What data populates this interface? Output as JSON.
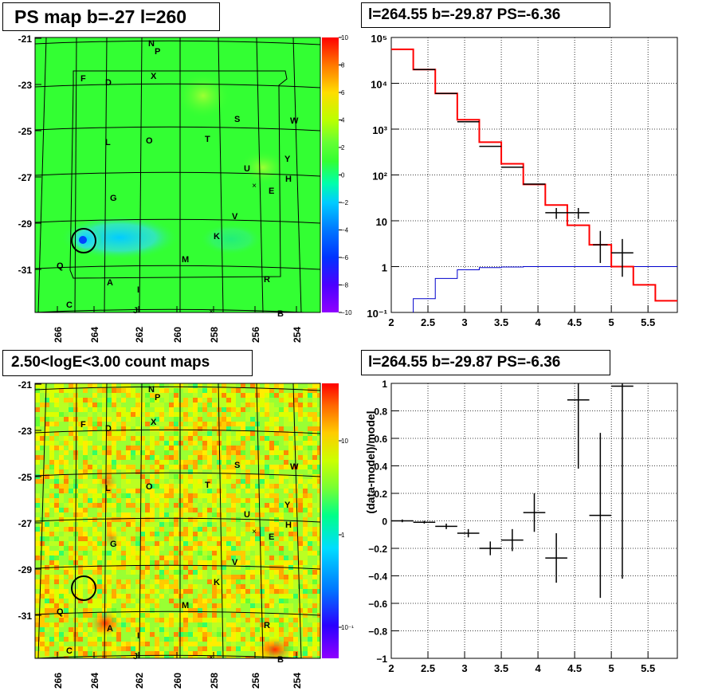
{
  "panels": {
    "map": {
      "title": "PS map b=-27 l=260"
    },
    "spectrum": {
      "title": "l=264.55 b=-29.87 PS=-6.36"
    },
    "counts": {
      "title": "2.50<logE<3.00 count maps"
    },
    "residual": {
      "title": "l=264.55 b=-29.87 PS=-6.36"
    }
  },
  "chart_data": [
    {
      "type": "heatmap",
      "id": "ps-map",
      "title": "PS map b=-27 l=260",
      "x_ticks": [
        "266",
        "264",
        "262",
        "260",
        "258",
        "256",
        "254"
      ],
      "y_ticks": [
        "-21",
        "-23",
        "-25",
        "-27",
        "-29",
        "-31"
      ],
      "colorbar": {
        "min": -10,
        "max": 10,
        "ticks": [
          "10",
          "8",
          "6",
          "4",
          "2",
          "0",
          "−2",
          "−4",
          "−6",
          "−8",
          "−10"
        ]
      },
      "source_labels": [
        "N",
        "P",
        "F",
        "D",
        "X",
        "S",
        "W",
        "L",
        "O",
        "T",
        "Y",
        "U",
        "H",
        "E",
        "G",
        "V",
        "K",
        "M",
        "Q",
        "R",
        "A",
        "I",
        "C",
        "J",
        "B"
      ],
      "highlight": {
        "l": 264.55,
        "b": -29.87,
        "ps": -6.36
      },
      "colors": {
        "background": "#33ff33",
        "deficit": "#33ddff",
        "excess": "#99ff33"
      }
    },
    {
      "type": "line",
      "id": "spectrum",
      "title": "l=264.55 b=-29.87 PS=-6.36",
      "xlim": [
        2,
        5.9
      ],
      "ylim": [
        0.1,
        100000
      ],
      "log_y": true,
      "grid": true,
      "x_ticks": [
        "2",
        "2.5",
        "3",
        "3.5",
        "4",
        "4.5",
        "5",
        "5.5"
      ],
      "y_ticks": [
        "10⁻¹",
        "1",
        "10",
        "10²",
        "10³",
        "10⁴",
        "10⁵"
      ],
      "model_bins": [
        [
          2.0,
          2.3,
          55000
        ],
        [
          2.3,
          2.6,
          20000
        ],
        [
          2.6,
          2.9,
          6000
        ],
        [
          2.9,
          3.2,
          1600
        ],
        [
          3.2,
          3.5,
          520
        ],
        [
          3.5,
          3.8,
          175
        ],
        [
          3.8,
          4.1,
          62
        ],
        [
          4.1,
          4.4,
          22
        ],
        [
          4.4,
          4.7,
          8
        ],
        [
          4.7,
          5.0,
          3
        ],
        [
          5.0,
          5.3,
          1
        ],
        [
          5.3,
          5.6,
          0.4
        ],
        [
          5.6,
          5.9,
          0.18
        ]
      ],
      "background_bins": [
        [
          2.3,
          2.6,
          0.2
        ],
        [
          2.6,
          2.9,
          0.55
        ],
        [
          2.9,
          3.2,
          0.85
        ],
        [
          3.2,
          3.5,
          0.95
        ],
        [
          3.5,
          3.8,
          0.98
        ],
        [
          3.8,
          5.9,
          1.0
        ]
      ],
      "data_points": [
        [
          2.45,
          20000,
          2.3,
          2.6,
          0,
          0
        ],
        [
          2.75,
          6000,
          2.6,
          2.9,
          0,
          0
        ],
        [
          3.05,
          1450,
          2.9,
          3.2,
          0,
          0
        ],
        [
          3.35,
          420,
          3.2,
          3.5,
          0,
          0
        ],
        [
          3.65,
          148,
          3.5,
          3.8,
          0,
          0
        ],
        [
          3.95,
          63,
          3.8,
          4.1,
          0,
          0
        ],
        [
          4.25,
          15,
          4.1,
          4.4,
          19,
          11
        ],
        [
          4.55,
          15,
          4.4,
          4.7,
          19,
          11
        ],
        [
          4.85,
          3,
          4.75,
          4.95,
          6,
          1.2
        ],
        [
          5.15,
          2,
          5.0,
          5.3,
          4,
          0.6
        ]
      ],
      "colors": {
        "model": "#ff0000",
        "background": "#0000cc",
        "data": "#000000"
      }
    },
    {
      "type": "heatmap",
      "id": "count-map",
      "title": "2.50<logE<3.00 count maps",
      "x_ticks": [
        "266",
        "264",
        "262",
        "260",
        "258",
        "256",
        "254"
      ],
      "y_ticks": [
        "-21",
        "-23",
        "-25",
        "-27",
        "-29",
        "-31"
      ],
      "colorbar": {
        "log": true,
        "ticks": [
          "10",
          "1",
          "10⁻¹"
        ]
      },
      "colors": {
        "low": "#8f00ff",
        "mid": "#99ff33",
        "high": "#ff0000"
      }
    },
    {
      "type": "scatter",
      "id": "residual",
      "title": "l=264.55 b=-29.87 PS=-6.36",
      "ylabel": "(data-model)/model",
      "xlim": [
        2,
        5.9
      ],
      "ylim": [
        -1,
        1
      ],
      "grid": true,
      "x_ticks": [
        "2",
        "2.5",
        "3",
        "3.5",
        "4",
        "4.5",
        "5",
        "5.5"
      ],
      "y_ticks": [
        "−1",
        "−0.8",
        "−0.6",
        "−0.4",
        "−0.2",
        "0",
        "0.2",
        "0.4",
        "0.6",
        "0.8",
        "1"
      ],
      "points": [
        [
          2.15,
          0.0,
          2.0,
          2.3,
          0.01,
          0.01
        ],
        [
          2.45,
          -0.01,
          2.3,
          2.6,
          0.01,
          0.01
        ],
        [
          2.75,
          -0.04,
          2.6,
          2.9,
          0.02,
          0.02
        ],
        [
          3.05,
          -0.09,
          2.9,
          3.2,
          0.03,
          0.03
        ],
        [
          3.35,
          -0.2,
          3.2,
          3.5,
          0.05,
          0.05
        ],
        [
          3.65,
          -0.14,
          3.5,
          3.8,
          0.08,
          0.08
        ],
        [
          3.95,
          0.06,
          3.8,
          4.1,
          0.14,
          0.14
        ],
        [
          4.25,
          -0.27,
          4.1,
          4.4,
          0.18,
          0.18
        ],
        [
          4.55,
          0.88,
          4.4,
          4.7,
          0.5,
          0.5
        ],
        [
          4.85,
          0.04,
          4.7,
          5.0,
          0.6,
          0.6
        ],
        [
          5.15,
          0.98,
          5.0,
          5.3,
          1.4,
          1.4
        ]
      ]
    }
  ]
}
